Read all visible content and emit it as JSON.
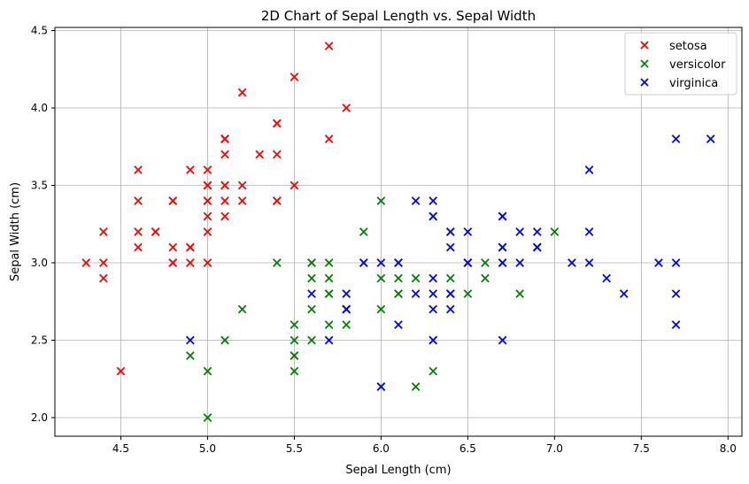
{
  "chart_data": {
    "type": "scatter",
    "title": "2D Chart of Sepal Length vs. Sepal Width",
    "xlabel": "Sepal Length (cm)",
    "ylabel": "Sepal Width (cm)",
    "xlim": [
      4.12,
      8.08
    ],
    "ylim": [
      1.88,
      4.52
    ],
    "xticks": [
      4.5,
      5.0,
      5.5,
      6.0,
      6.5,
      7.0,
      7.5,
      8.0
    ],
    "yticks": [
      2.0,
      2.5,
      3.0,
      3.5,
      4.0,
      4.5
    ],
    "xtick_labels": [
      "4.5",
      "5.0",
      "5.5",
      "6.0",
      "6.5",
      "7.0",
      "7.5",
      "8.0"
    ],
    "ytick_labels": [
      "2.0",
      "2.5",
      "3.0",
      "3.5",
      "4.0",
      "4.5"
    ],
    "grid": true,
    "legend_position": "top-right",
    "marker": "x",
    "series": [
      {
        "name": "setosa",
        "color": "#ff0000",
        "points": [
          [
            5.1,
            3.5
          ],
          [
            4.9,
            3.0
          ],
          [
            4.7,
            3.2
          ],
          [
            4.6,
            3.1
          ],
          [
            5.0,
            3.6
          ],
          [
            5.4,
            3.9
          ],
          [
            4.6,
            3.4
          ],
          [
            5.0,
            3.4
          ],
          [
            4.4,
            2.9
          ],
          [
            4.9,
            3.1
          ],
          [
            5.4,
            3.7
          ],
          [
            4.8,
            3.4
          ],
          [
            4.8,
            3.0
          ],
          [
            4.3,
            3.0
          ],
          [
            5.8,
            4.0
          ],
          [
            5.7,
            4.4
          ],
          [
            5.4,
            3.9
          ],
          [
            5.1,
            3.5
          ],
          [
            5.7,
            3.8
          ],
          [
            5.1,
            3.8
          ],
          [
            5.4,
            3.4
          ],
          [
            5.1,
            3.7
          ],
          [
            4.6,
            3.6
          ],
          [
            5.1,
            3.3
          ],
          [
            4.8,
            3.4
          ],
          [
            5.0,
            3.0
          ],
          [
            5.0,
            3.4
          ],
          [
            5.2,
            3.5
          ],
          [
            5.2,
            3.4
          ],
          [
            4.7,
            3.2
          ],
          [
            4.8,
            3.1
          ],
          [
            5.4,
            3.4
          ],
          [
            5.2,
            4.1
          ],
          [
            5.5,
            4.2
          ],
          [
            4.9,
            3.1
          ],
          [
            5.0,
            3.2
          ],
          [
            5.5,
            3.5
          ],
          [
            4.9,
            3.6
          ],
          [
            4.4,
            3.0
          ],
          [
            5.1,
            3.4
          ],
          [
            5.0,
            3.5
          ],
          [
            4.5,
            2.3
          ],
          [
            4.4,
            3.2
          ],
          [
            5.0,
            3.5
          ],
          [
            5.1,
            3.8
          ],
          [
            4.8,
            3.0
          ],
          [
            5.1,
            3.8
          ],
          [
            4.6,
            3.2
          ],
          [
            5.3,
            3.7
          ],
          [
            5.0,
            3.3
          ]
        ]
      },
      {
        "name": "versicolor",
        "color": "#008000",
        "points": [
          [
            7.0,
            3.2
          ],
          [
            6.4,
            3.2
          ],
          [
            6.9,
            3.1
          ],
          [
            5.5,
            2.3
          ],
          [
            6.5,
            2.8
          ],
          [
            5.7,
            2.8
          ],
          [
            6.3,
            3.3
          ],
          [
            4.9,
            2.4
          ],
          [
            6.6,
            2.9
          ],
          [
            5.2,
            2.7
          ],
          [
            5.0,
            2.0
          ],
          [
            5.9,
            3.0
          ],
          [
            6.0,
            2.2
          ],
          [
            6.1,
            2.9
          ],
          [
            5.6,
            2.9
          ],
          [
            6.7,
            3.1
          ],
          [
            5.6,
            3.0
          ],
          [
            5.8,
            2.7
          ],
          [
            6.2,
            2.2
          ],
          [
            5.6,
            2.5
          ],
          [
            5.9,
            3.2
          ],
          [
            6.1,
            2.8
          ],
          [
            6.3,
            2.5
          ],
          [
            6.1,
            2.8
          ],
          [
            6.4,
            2.9
          ],
          [
            6.6,
            3.0
          ],
          [
            6.8,
            2.8
          ],
          [
            6.7,
            3.0
          ],
          [
            6.0,
            2.9
          ],
          [
            5.7,
            2.6
          ],
          [
            5.5,
            2.4
          ],
          [
            5.5,
            2.4
          ],
          [
            5.8,
            2.7
          ],
          [
            6.0,
            2.7
          ],
          [
            5.4,
            3.0
          ],
          [
            6.0,
            3.4
          ],
          [
            6.7,
            3.1
          ],
          [
            6.3,
            2.3
          ],
          [
            5.6,
            3.0
          ],
          [
            5.5,
            2.5
          ],
          [
            5.5,
            2.6
          ],
          [
            6.1,
            3.0
          ],
          [
            5.8,
            2.6
          ],
          [
            5.0,
            2.3
          ],
          [
            5.6,
            2.7
          ],
          [
            5.7,
            3.0
          ],
          [
            5.7,
            2.9
          ],
          [
            6.2,
            2.9
          ],
          [
            5.1,
            2.5
          ],
          [
            5.7,
            2.8
          ]
        ]
      },
      {
        "name": "virginica",
        "color": "#0000ff",
        "points": [
          [
            6.3,
            3.3
          ],
          [
            5.8,
            2.7
          ],
          [
            7.1,
            3.0
          ],
          [
            6.3,
            2.9
          ],
          [
            6.5,
            3.0
          ],
          [
            7.6,
            3.0
          ],
          [
            4.9,
            2.5
          ],
          [
            7.3,
            2.9
          ],
          [
            6.7,
            2.5
          ],
          [
            7.2,
            3.6
          ],
          [
            6.5,
            3.2
          ],
          [
            6.4,
            2.7
          ],
          [
            6.8,
            3.0
          ],
          [
            5.7,
            2.5
          ],
          [
            5.8,
            2.8
          ],
          [
            6.4,
            3.2
          ],
          [
            6.5,
            3.0
          ],
          [
            7.7,
            3.8
          ],
          [
            7.7,
            2.6
          ],
          [
            6.0,
            2.2
          ],
          [
            6.9,
            3.2
          ],
          [
            5.6,
            2.8
          ],
          [
            7.7,
            2.8
          ],
          [
            6.3,
            2.7
          ],
          [
            6.7,
            3.3
          ],
          [
            7.2,
            3.2
          ],
          [
            6.2,
            2.8
          ],
          [
            6.1,
            3.0
          ],
          [
            6.4,
            2.8
          ],
          [
            7.2,
            3.0
          ],
          [
            7.4,
            2.8
          ],
          [
            7.9,
            3.8
          ],
          [
            6.4,
            2.8
          ],
          [
            6.3,
            2.8
          ],
          [
            6.1,
            2.6
          ],
          [
            7.7,
            3.0
          ],
          [
            6.3,
            3.4
          ],
          [
            6.4,
            3.1
          ],
          [
            6.0,
            3.0
          ],
          [
            6.9,
            3.1
          ],
          [
            6.7,
            3.1
          ],
          [
            6.9,
            3.1
          ],
          [
            5.8,
            2.7
          ],
          [
            6.8,
            3.2
          ],
          [
            6.7,
            3.3
          ],
          [
            6.7,
            3.0
          ],
          [
            6.3,
            2.5
          ],
          [
            6.5,
            3.0
          ],
          [
            6.2,
            3.4
          ],
          [
            5.9,
            3.0
          ]
        ]
      }
    ]
  }
}
